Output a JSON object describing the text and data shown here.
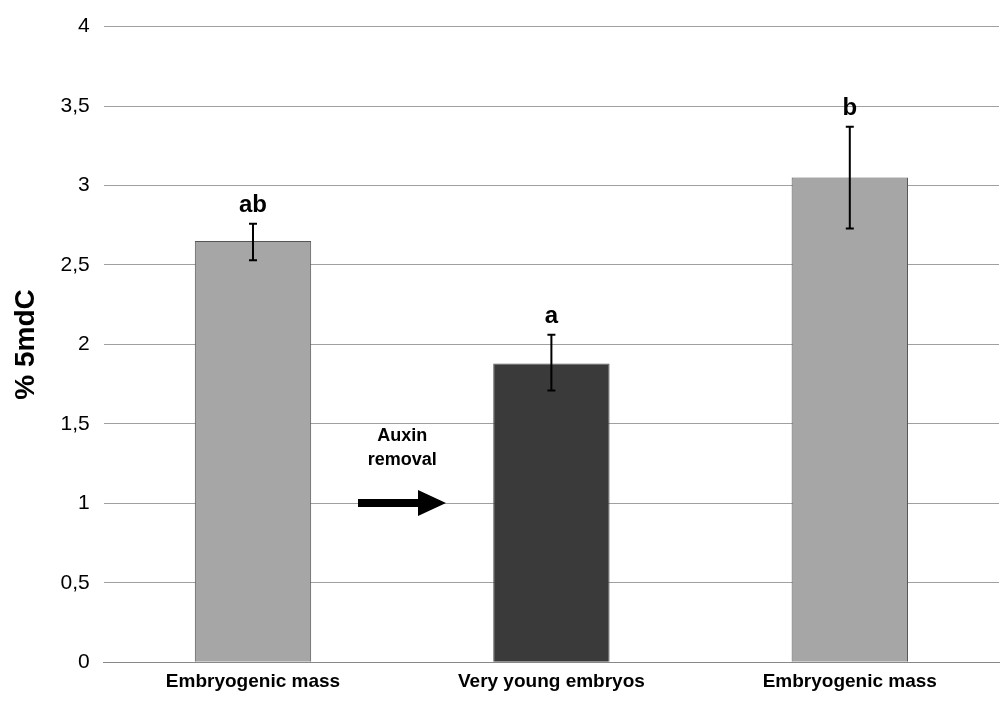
{
  "chart_data": {
    "type": "bar",
    "ylabel": "% 5mdC",
    "categories": [
      "Embryogenic mass",
      "Very young embryos",
      "Embryogenic mass"
    ],
    "values": [
      2.65,
      1.88,
      3.05
    ],
    "colors": [
      "#a6a6a6",
      "#3a3a3a",
      "#a6a6a6"
    ],
    "errors": [
      [
        2.53,
        2.76
      ],
      [
        1.71,
        2.06
      ],
      [
        2.73,
        3.37
      ]
    ],
    "value_labels": [
      "ab",
      "a",
      "b"
    ],
    "ylim": [
      0,
      4
    ],
    "yticks": [
      0,
      {
        "value": 0.5,
        "label": "0,5"
      },
      1,
      {
        "value": 1.5,
        "label": "1,5"
      },
      2,
      {
        "value": 2.5,
        "label": "2,5"
      },
      3,
      {
        "value": 3.5,
        "label": "3,5"
      },
      4
    ],
    "grid": "y",
    "legend": false,
    "annotations": [
      "Auxin removal"
    ]
  }
}
